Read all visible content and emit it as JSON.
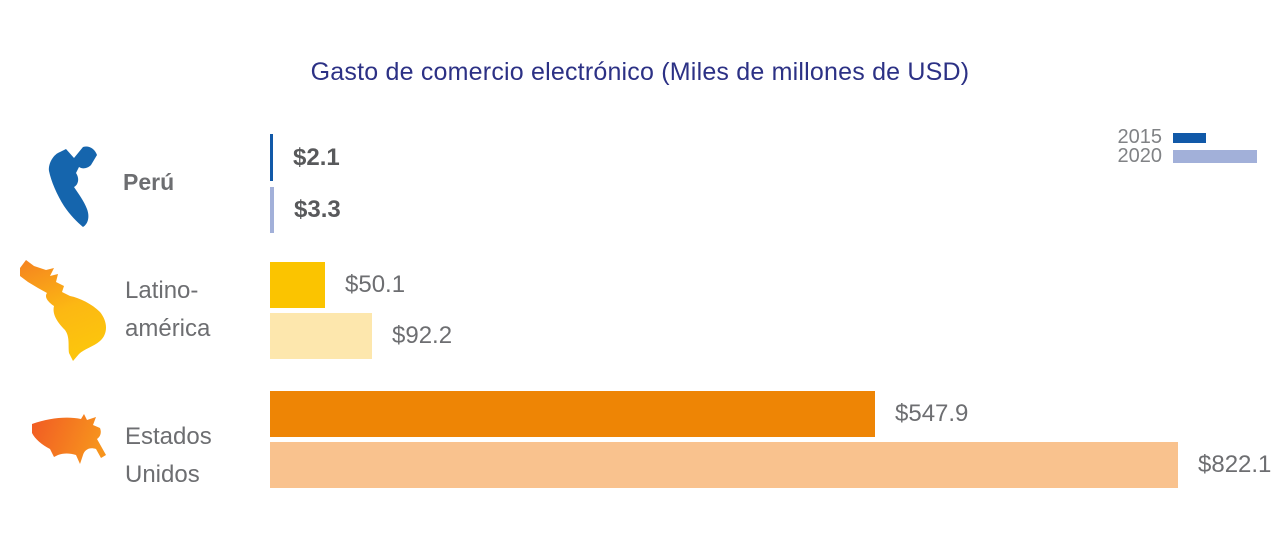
{
  "title": "Gasto de comercio electrónico (Miles de millones de USD)",
  "legend": {
    "items": [
      {
        "label": "2015",
        "color": "#1159a8"
      },
      {
        "label": "2020",
        "color": "#a2b0d9"
      }
    ]
  },
  "rows": [
    {
      "icon": "peru-map-icon",
      "label_lines": [
        "Perú"
      ],
      "value_labels": [
        "$2.1",
        "$3.3"
      ]
    },
    {
      "icon": "latam-map-icon",
      "label_lines": [
        "Latino-",
        "américa"
      ],
      "value_labels": [
        "$50.1",
        "$92.2"
      ]
    },
    {
      "icon": "usa-map-icon",
      "label_lines": [
        "Estados",
        "Unidos"
      ],
      "value_labels": [
        "$547.9",
        "$822.1"
      ]
    }
  ],
  "palette": {
    "title_text": "#2c3185",
    "label_text": "#6d6e71",
    "value_text": "#58595b",
    "legend_text": "#808285",
    "peru_icon_blue": "#1565ad",
    "latam_icon_orange": "#f58220",
    "latam_icon_yellow": "#fcc40d",
    "usa_icon_red_orange": "#f15a24",
    "usa_icon_orange": "#f7941d"
  },
  "chart_data": {
    "type": "bar",
    "orientation": "horizontal",
    "title": "Gasto de comercio electrónico (Miles de millones de USD)",
    "unit": "Miles de millones de USD",
    "categories": [
      "Perú",
      "Latinoamérica",
      "Estados Unidos"
    ],
    "series": [
      {
        "name": "2015",
        "values": [
          2.1,
          50.1,
          547.9
        ],
        "colors": [
          "#1159a8",
          "#fbc400",
          "#ee8505"
        ]
      },
      {
        "name": "2020",
        "values": [
          3.3,
          92.2,
          822.1
        ],
        "colors": [
          "#a2b0d9",
          "#fde7ad",
          "#f9c28e"
        ]
      }
    ],
    "value_labels": [
      [
        "$2.1",
        "$50.1",
        "$547.9"
      ],
      [
        "$3.3",
        "$92.2",
        "$822.1"
      ]
    ],
    "xlim": [
      0,
      830
    ],
    "grid": false,
    "legend_position": "top-right"
  }
}
